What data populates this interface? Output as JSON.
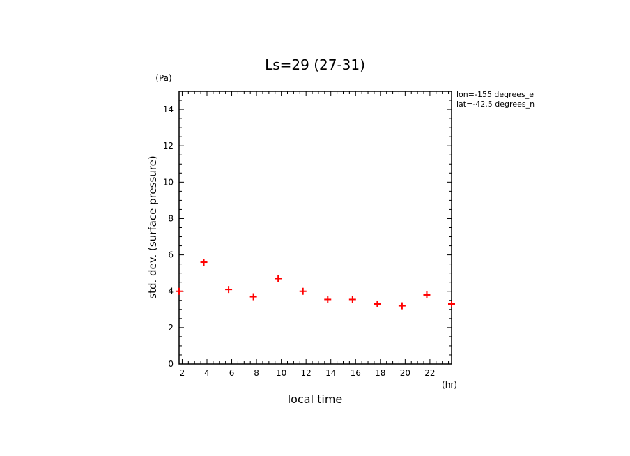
{
  "chart_data": {
    "type": "scatter",
    "title": "Ls=29 (27-31)",
    "xlabel": "local time",
    "ylabel": "std. dev. (surface pressure)",
    "x_unit": "(hr)",
    "y_unit": "(Pa)",
    "xlim": [
      1.75,
      23.75
    ],
    "ylim": [
      0,
      15
    ],
    "x_ticks": [
      2,
      4,
      6,
      8,
      10,
      12,
      14,
      16,
      18,
      20,
      22
    ],
    "y_ticks": [
      0,
      2,
      4,
      6,
      8,
      10,
      12,
      14
    ],
    "grid": false,
    "marker": "+",
    "annotations": [
      "lon=-155 degrees_e",
      "lat=-42.5 degrees_n"
    ],
    "series": [
      {
        "color": "#ff0000",
        "x": [
          1.75,
          3.75,
          5.75,
          7.75,
          9.75,
          11.75,
          13.75,
          15.75,
          17.75,
          19.75,
          21.75,
          23.75
        ],
        "y": [
          4.0,
          5.6,
          4.1,
          3.7,
          4.7,
          4.0,
          3.55,
          3.55,
          3.3,
          3.2,
          3.8,
          3.3
        ]
      }
    ]
  }
}
